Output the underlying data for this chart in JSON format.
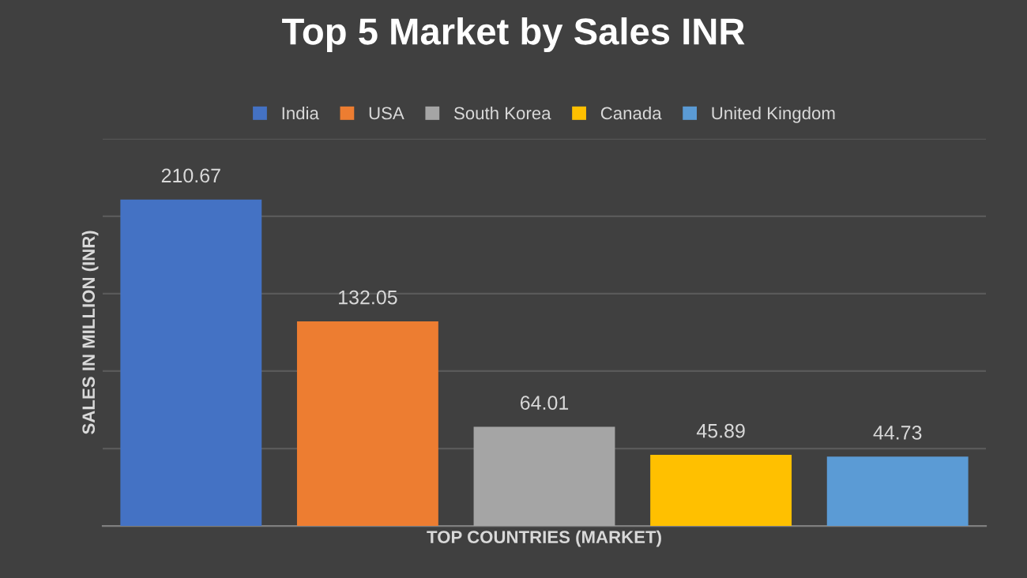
{
  "chart_data": {
    "type": "bar",
    "title": "Top 5 Market by Sales INR",
    "xlabel": "TOP COUNTRIES (MARKET)",
    "ylabel": "SALES IN MILLION (INR)",
    "categories": [
      null
    ],
    "series": [
      {
        "name": "India",
        "color": "#4472c4",
        "values": [
          210.67
        ]
      },
      {
        "name": "USA",
        "color": "#ed7d31",
        "values": [
          132.05
        ]
      },
      {
        "name": "South Korea",
        "color": "#a5a5a5",
        "values": [
          64.01
        ]
      },
      {
        "name": "Canada",
        "color": "#ffc000",
        "values": [
          45.89
        ]
      },
      {
        "name": "United Kingdom",
        "color": "#5b9bd5",
        "values": [
          44.73
        ]
      }
    ],
    "ylim": [
      0,
      250
    ],
    "yticks": [
      {
        "value": 0,
        "label": null
      },
      {
        "value": 50,
        "label": null
      },
      {
        "value": 100,
        "label": null
      },
      {
        "value": 150,
        "label": null
      },
      {
        "value": 200,
        "label": null
      },
      {
        "value": 250,
        "label": null
      }
    ],
    "grid": "y",
    "legend": "top",
    "data_labels": true
  }
}
